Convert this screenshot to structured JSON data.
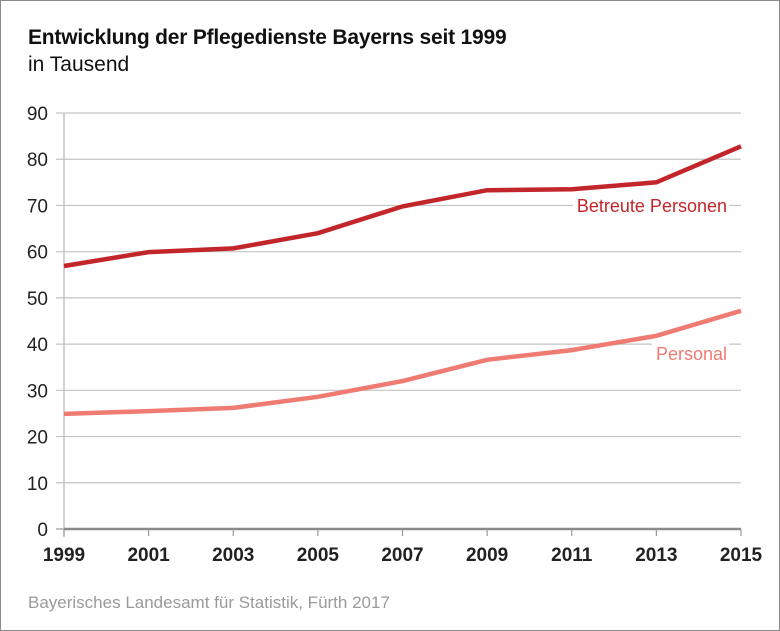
{
  "chart_data": {
    "type": "line",
    "title": "Entwicklung der Pflegedienste Bayerns seit 1999",
    "subtitle": "in Tausend",
    "source": "Bayerisches Landesamt für Statistik, Fürth 2017",
    "xlabel": "",
    "ylabel": "",
    "x": [
      "1999",
      "2001",
      "2003",
      "2005",
      "2007",
      "2009",
      "2011",
      "2013",
      "2015"
    ],
    "ylim": [
      0,
      90
    ],
    "yticks": [
      "0",
      "10",
      "20",
      "30",
      "40",
      "50",
      "60",
      "70",
      "80",
      "90"
    ],
    "grid": true,
    "series": [
      {
        "name": "Betreute Personen",
        "color": "#c3262a",
        "values": [
          56.9,
          59.9,
          60.7,
          64.0,
          69.8,
          73.3,
          73.5,
          75.0,
          82.8
        ]
      },
      {
        "name": "Personal",
        "color": "#ef7b73",
        "values": [
          24.9,
          25.5,
          26.2,
          28.6,
          32.0,
          36.6,
          38.7,
          41.8,
          47.2
        ]
      }
    ]
  }
}
